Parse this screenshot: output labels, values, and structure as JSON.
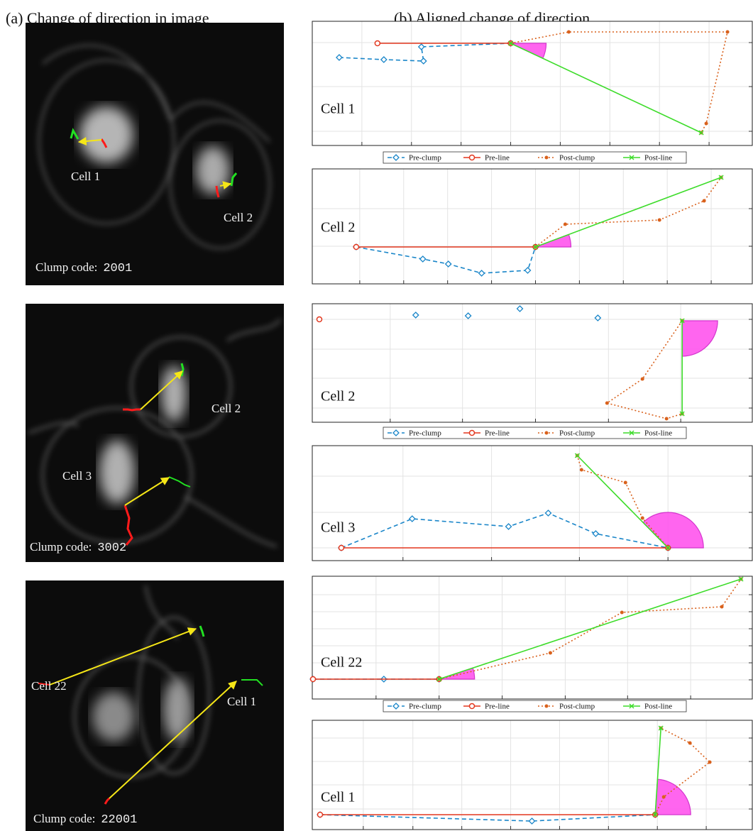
{
  "panel_a": {
    "title": "(a) Change of direction in image",
    "images": [
      {
        "cells": [
          "Cell 1",
          "Cell 2"
        ],
        "clump_code_prefix": "Clump code:",
        "clump_code": "2001"
      },
      {
        "cells": [
          "Cell 2",
          "Cell 3"
        ],
        "clump_code_prefix": "Clump code:",
        "clump_code": "3002"
      },
      {
        "cells": [
          "Cell 22",
          "Cell 1"
        ],
        "clump_code_prefix": "Clump code:",
        "clump_code": "22001"
      }
    ]
  },
  "panel_b": {
    "title": "(b) Aligned change of direction",
    "legend": [
      {
        "name": "Pre-clump",
        "color": "#1a86c9",
        "dash": "6 4",
        "marker": "diamond"
      },
      {
        "name": "Pre-line",
        "color": "#e3371e",
        "dash": "none",
        "marker": "circle"
      },
      {
        "name": "Post-clump",
        "color": "#d9611c",
        "dash": "2 3",
        "marker": "dot"
      },
      {
        "name": "Post-line",
        "color": "#3ddc2a",
        "dash": "none",
        "marker": "cross"
      }
    ],
    "plots": [
      {
        "cell": "Cell 1",
        "xlim": [
          0,
          62.1
        ],
        "ylim": [
          0,
          17.5
        ],
        "xticks": [
          7,
          14,
          21,
          28,
          35,
          42,
          49,
          56
        ],
        "yticks": [
          2,
          8.3,
          14.5
        ],
        "series": [
          {
            "x": [
              3.8,
              10.1,
              15.7,
              15.4,
              28
            ],
            "y": [
              12.4,
              12.1,
              11.9,
              13.9,
              14.4
            ]
          },
          {
            "x": [
              9.2,
              28
            ],
            "y": [
              14.4,
              14.4
            ]
          },
          {
            "x": [
              28,
              36.2,
              58.6,
              55.6,
              54.9
            ],
            "y": [
              14.4,
              16,
              16,
              3.1,
              1.8
            ]
          },
          {
            "x": [
              28,
              54.9
            ],
            "y": [
              14.4,
              1.8
            ]
          }
        ]
      },
      {
        "cell": "Cell 2",
        "xlim": [
          0,
          62.1
        ],
        "ylim": [
          0,
          16.2
        ],
        "xticks": [
          6.7,
          12.9,
          19.1,
          25.3,
          31.5,
          37.7,
          43.9,
          50.1,
          56.3
        ],
        "yticks": [
          5.3,
          10.6
        ],
        "series": [
          {
            "x": [
              6.2,
              15.6,
              19.2,
              23.9,
              30.4,
              31.5
            ],
            "y": [
              5.2,
              3.5,
              2.8,
              1.5,
              1.9,
              5.2
            ]
          },
          {
            "x": [
              6.2,
              31.5
            ],
            "y": [
              5.2,
              5.2
            ]
          },
          {
            "x": [
              31.5,
              35.7,
              49,
              55.3,
              57.7
            ],
            "y": [
              5.2,
              8.4,
              9,
              11.7,
              15
            ]
          },
          {
            "x": [
              31.5,
              57.7
            ],
            "y": [
              5.2,
              15
            ]
          }
        ]
      },
      {
        "cell": "Cell 2",
        "xlim": [
          0,
          62.1
        ],
        "ylim": [
          0,
          16.7
        ],
        "xticks": [
          11,
          21.2,
          31.5,
          41.8,
          52
        ],
        "yticks": [
          2,
          6.2,
          10.3,
          14.5
        ],
        "series": [
          {
            "x": [
              14.6,
              22,
              29.3,
              40.3
            ],
            "y": [
              15.1,
              15,
              16,
              14.7
            ],
            "line": false
          },
          {
            "x": [
              1
            ],
            "y": [
              14.5
            ]
          },
          {
            "x": [
              52.2,
              46.6,
              41.6,
              50,
              52.2
            ],
            "y": [
              14.3,
              6.1,
              2.7,
              0.5,
              1.2
            ]
          },
          {
            "x": [
              52.2,
              52.2
            ],
            "y": [
              14.3,
              1.2
            ]
          }
        ]
      },
      {
        "cell": "Cell 3",
        "xlim": [
          0,
          62.1
        ],
        "ylim": [
          0,
          16.2
        ],
        "xticks": [
          12.8,
          25.3,
          37.7,
          50.2
        ],
        "yticks": [
          1.8,
          6.8,
          11.9
        ],
        "series": [
          {
            "x": [
              4.1,
              14.1,
              27.7,
              33.3,
              40,
              50.2
            ],
            "y": [
              1.8,
              5.9,
              4.8,
              6.7,
              3.8,
              1.8
            ]
          },
          {
            "x": [
              4.1,
              50.2
            ],
            "y": [
              1.8,
              1.8
            ]
          },
          {
            "x": [
              50.2,
              46.6,
              44.2,
              38,
              37.4
            ],
            "y": [
              1.8,
              6,
              11,
              12.8,
              14.8
            ]
          },
          {
            "x": [
              50.2,
              37.4
            ],
            "y": [
              1.8,
              14.8
            ]
          }
        ]
      },
      {
        "cell": "Cell 22",
        "xlim": [
          0,
          62.1
        ],
        "ylim": [
          0,
          17.3
        ],
        "xticks": [
          9,
          17.9,
          26.8,
          35.7,
          44.5,
          53.4
        ],
        "yticks": [
          2.7,
          5.1,
          7.5,
          9.9,
          12.3,
          14.7
        ],
        "series": [
          {
            "x": [
              0.1,
              10.1,
              17.9
            ],
            "y": [
              2.8,
              2.8,
              2.8
            ]
          },
          {
            "x": [
              0.1,
              17.9
            ],
            "y": [
              2.8,
              2.8
            ]
          },
          {
            "x": [
              17.9,
              33.6,
              43.7,
              57.8,
              60.5
            ],
            "y": [
              2.8,
              6.5,
              12.2,
              13,
              16.9
            ]
          },
          {
            "x": [
              17.9,
              60.5
            ],
            "y": [
              2.8,
              16.9
            ]
          }
        ]
      },
      {
        "cell": "Cell 1",
        "xlim": [
          0,
          62.1
        ],
        "ylim": [
          0,
          15.4
        ],
        "xticks": [
          7.2,
          14.2,
          21.1,
          28,
          34.9,
          41.8,
          48.7,
          55.6
        ],
        "yticks": [
          2.9,
          6.3,
          9.6,
          12.9
        ],
        "series": [
          {
            "x": [
              1.1,
              31,
              48.4
            ],
            "y": [
              2.1,
              1.2,
              2.1
            ]
          },
          {
            "x": [
              1.1,
              48.4
            ],
            "y": [
              2.1,
              2.1
            ]
          },
          {
            "x": [
              48.4,
              49.6,
              56.1,
              53.3,
              49.2
            ],
            "y": [
              2.1,
              4.6,
              9.5,
              12.2,
              14.3
            ]
          },
          {
            "x": [
              48.4,
              49.2
            ],
            "y": [
              2.1,
              14.3
            ]
          }
        ]
      }
    ]
  }
}
